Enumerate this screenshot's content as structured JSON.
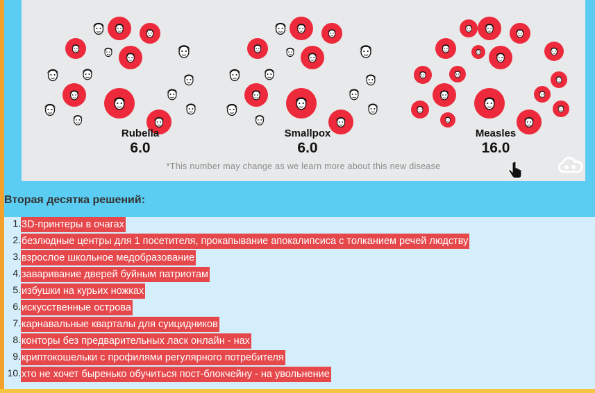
{
  "infographic": {
    "diseases": [
      {
        "name": "Rubella",
        "value": "6.0"
      },
      {
        "name": "Smallpox",
        "value": "6.0"
      },
      {
        "name": "Measles",
        "value": "16.0"
      }
    ],
    "footnote": "*This number may change as we learn more about this new disease",
    "colors": {
      "infected": "#ec2a3b",
      "background": "#e8e9ea"
    },
    "logo_icon": "cloud-logo-icon",
    "cursor_icon": "hand-pointer-icon"
  },
  "solutions": {
    "heading": "Вторая десятка решений:",
    "items": [
      {
        "num": "1.",
        "text": "3D-принтеры в очагах"
      },
      {
        "num": "2.",
        "text": "безлюдные центры для 1 посетителя, прокапывание апокалипсиса с толканием речей людству"
      },
      {
        "num": "3.",
        "text": "взрослое школьное медобразование"
      },
      {
        "num": "4.",
        "text": "заваривание дверей буйным патриотам"
      },
      {
        "num": "5.",
        "text": "избушки на курьих ножках"
      },
      {
        "num": "6.",
        "text": "искусственные острова"
      },
      {
        "num": "7.",
        "text": "карнавальные кварталы для суицидников"
      },
      {
        "num": "8.",
        "text": "конторы без предварительных ласк онлайн - нах"
      },
      {
        "num": "9.",
        "text": "криптокошельки с профилями регулярного потребителя"
      },
      {
        "num": "10.",
        "text": "хто не хочет быренько обучиться пост-блокчейну - на увольнение"
      }
    ],
    "highlight_color": "#e5474b"
  },
  "page_colors": {
    "frame": "#5ccdf2",
    "left_bar": "#f3a12b",
    "bottom_bar": "#f6c542",
    "list_panel": "#d4effb"
  }
}
